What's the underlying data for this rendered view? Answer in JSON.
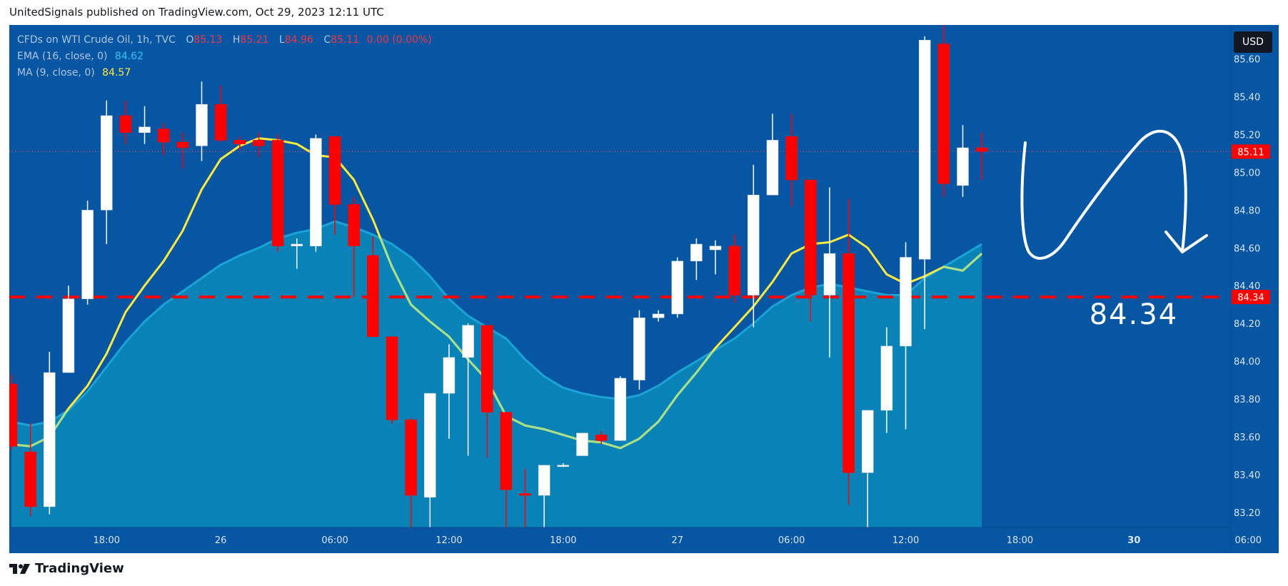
{
  "header": {
    "published": "UnitedSignals published on TradingView.com, Oct 29, 2023 12:11 UTC"
  },
  "legend": {
    "symbol": "CFDs on WTI Crude Oil, 1h, TVC",
    "open_label": "O",
    "open": "85.13",
    "high_label": "H",
    "high": "85.21",
    "low_label": "L",
    "low": "84.96",
    "close_label": "C",
    "close": "85.11",
    "change": "0.00 (0.00%)",
    "ema_label": "EMA (16, close, 0)",
    "ema_value": "84.62",
    "ma_label": "MA (9, close, 0)",
    "ma_value": "84.57"
  },
  "currency_button": "USD",
  "footer": {
    "brand": "TradingView"
  },
  "colors": {
    "background": "#0656a4",
    "bull": "#ffffff",
    "bear": "#ff0000",
    "ema_fill": "#0a86b8",
    "ema_line": "#1aa3d6",
    "ma_line": "#ffeb3b",
    "target_line": "#ff0000",
    "axis_text": "#dbe4f0"
  },
  "chart_data": {
    "type": "candlestick",
    "timeframe": "1h",
    "symbol": "CFDs on WTI Crude Oil",
    "ylim": [
      83.12,
      85.78
    ],
    "y_ticks": [
      "85.60",
      "85.40",
      "85.20",
      "85.00",
      "84.80",
      "84.60",
      "84.40",
      "84.20",
      "84.00",
      "83.80",
      "83.60",
      "83.40",
      "83.20"
    ],
    "x_ticks": [
      {
        "label": "18:00",
        "bar": 5,
        "bold": false
      },
      {
        "label": "26",
        "bar": 11,
        "bold": false
      },
      {
        "label": "06:00",
        "bar": 17,
        "bold": false
      },
      {
        "label": "12:00",
        "bar": 23,
        "bold": false
      },
      {
        "label": "18:00",
        "bar": 29,
        "bold": false
      },
      {
        "label": "27",
        "bar": 35,
        "bold": false
      },
      {
        "label": "06:00",
        "bar": 41,
        "bold": false
      },
      {
        "label": "12:00",
        "bar": 47,
        "bold": false
      },
      {
        "label": "18:00",
        "bar": 53,
        "bold": false
      },
      {
        "label": "30",
        "bar": 59,
        "bold": true
      },
      {
        "label": "06:00",
        "bar": 65,
        "bold": false
      }
    ],
    "candles": [
      [
        83.88,
        83.93,
        83.53,
        83.55
      ],
      [
        83.52,
        83.67,
        83.18,
        83.23
      ],
      [
        83.23,
        84.05,
        83.19,
        83.94
      ],
      [
        83.94,
        84.4,
        83.94,
        84.33
      ],
      [
        84.33,
        84.85,
        84.3,
        84.8
      ],
      [
        84.8,
        85.38,
        84.62,
        85.3
      ],
      [
        85.3,
        85.38,
        85.15,
        85.21
      ],
      [
        85.21,
        85.35,
        85.15,
        85.24
      ],
      [
        85.23,
        85.26,
        85.09,
        85.16
      ],
      [
        85.16,
        85.21,
        85.02,
        85.13
      ],
      [
        85.14,
        85.48,
        85.06,
        85.36
      ],
      [
        85.36,
        85.46,
        85.16,
        85.17
      ],
      [
        85.17,
        85.19,
        85.12,
        85.15
      ],
      [
        85.17,
        85.21,
        85.08,
        85.14
      ],
      [
        85.17,
        85.2,
        84.58,
        84.61
      ],
      [
        84.61,
        84.65,
        84.49,
        84.62
      ],
      [
        84.61,
        85.2,
        84.58,
        85.18
      ],
      [
        85.19,
        85.19,
        84.67,
        84.83
      ],
      [
        84.83,
        84.87,
        84.34,
        84.61
      ],
      [
        84.56,
        84.66,
        84.13,
        84.13
      ],
      [
        84.13,
        84.13,
        83.67,
        83.69
      ],
      [
        83.69,
        83.7,
        83.12,
        83.29
      ],
      [
        83.28,
        83.83,
        83.12,
        83.83
      ],
      [
        83.83,
        84.09,
        83.59,
        84.02
      ],
      [
        84.02,
        84.2,
        83.5,
        84.19
      ],
      [
        84.19,
        84.19,
        83.49,
        83.73
      ],
      [
        83.73,
        83.73,
        83.12,
        83.32
      ],
      [
        83.3,
        83.43,
        83.12,
        83.29
      ],
      [
        83.29,
        83.45,
        83.12,
        83.45
      ],
      [
        83.45,
        83.46,
        83.44,
        83.45
      ],
      [
        83.5,
        83.62,
        83.5,
        83.62
      ],
      [
        83.61,
        83.63,
        83.56,
        83.58
      ],
      [
        83.58,
        83.92,
        83.58,
        83.91
      ],
      [
        83.9,
        84.27,
        83.85,
        84.23
      ],
      [
        84.23,
        84.27,
        84.21,
        84.25
      ],
      [
        84.25,
        84.55,
        84.23,
        84.53
      ],
      [
        84.53,
        84.65,
        84.43,
        84.62
      ],
      [
        84.59,
        84.64,
        84.46,
        84.61
      ],
      [
        84.61,
        84.67,
        84.31,
        84.35
      ],
      [
        84.35,
        85.04,
        84.18,
        84.88
      ],
      [
        84.88,
        85.31,
        84.88,
        85.17
      ],
      [
        85.19,
        85.31,
        84.82,
        84.96
      ],
      [
        84.96,
        84.96,
        84.21,
        84.35
      ],
      [
        84.35,
        84.92,
        84.02,
        84.57
      ],
      [
        84.57,
        84.86,
        83.24,
        83.41
      ],
      [
        83.41,
        83.74,
        83.12,
        83.74
      ],
      [
        83.74,
        84.18,
        83.62,
        84.08
      ],
      [
        84.08,
        84.63,
        83.64,
        84.55
      ],
      [
        84.54,
        85.72,
        84.17,
        85.7
      ],
      [
        85.68,
        85.78,
        84.87,
        84.94
      ],
      [
        84.93,
        85.25,
        84.87,
        85.13
      ],
      [
        85.13,
        85.21,
        84.96,
        85.11
      ]
    ],
    "ema16": [
      83.68,
      83.66,
      83.68,
      83.74,
      83.84,
      83.97,
      84.1,
      84.21,
      84.3,
      84.37,
      84.44,
      84.51,
      84.56,
      84.6,
      84.65,
      84.68,
      84.7,
      84.74,
      84.71,
      84.67,
      84.62,
      84.55,
      84.45,
      84.33,
      84.24,
      84.18,
      84.12,
      84.01,
      83.92,
      83.86,
      83.83,
      83.81,
      83.8,
      83.82,
      83.87,
      83.94,
      84.0,
      84.06,
      84.12,
      84.2,
      84.29,
      84.35,
      84.39,
      84.41,
      84.39,
      84.37,
      84.35,
      84.35,
      84.44,
      84.5,
      84.56,
      84.62
    ],
    "ma9": [
      83.56,
      83.55,
      83.6,
      83.75,
      83.87,
      84.04,
      84.26,
      84.4,
      84.53,
      84.69,
      84.91,
      85.07,
      85.14,
      85.18,
      85.17,
      85.15,
      85.09,
      85.08,
      84.96,
      84.75,
      84.5,
      84.3,
      84.21,
      84.13,
      84.01,
      83.9,
      83.71,
      83.66,
      83.64,
      83.61,
      83.58,
      83.57,
      83.54,
      83.59,
      83.68,
      83.82,
      83.94,
      84.07,
      84.18,
      84.29,
      84.42,
      84.57,
      84.62,
      84.63,
      84.67,
      84.6,
      84.46,
      84.41,
      84.45,
      84.5,
      84.48,
      84.57
    ],
    "last_price": "85.11",
    "target_price": "84.34",
    "target_label": "84.34"
  }
}
